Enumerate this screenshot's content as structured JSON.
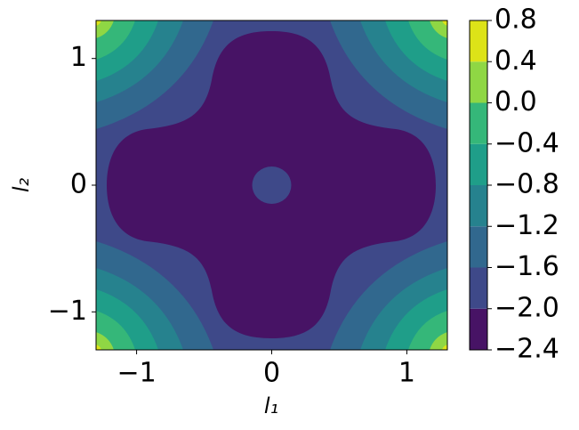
{
  "chart_data": {
    "type": "contourf",
    "xlabel": "l₁",
    "ylabel": "l₂",
    "xlim": [
      -1.3,
      1.3
    ],
    "ylim": [
      -1.3,
      1.3
    ],
    "xticks": [
      {
        "value": -1,
        "label": "−1"
      },
      0,
      1
    ],
    "yticks": [
      {
        "value": -1,
        "label": "−1"
      },
      0,
      1
    ],
    "clim": [
      -2.4,
      0.8
    ],
    "levels": [
      {
        "value": -2.4,
        "label": "−2.4"
      },
      {
        "value": -2.0,
        "label": "−2.0"
      },
      {
        "value": -1.6,
        "label": "−1.6"
      },
      {
        "value": -1.2,
        "label": "−1.2"
      },
      {
        "value": -0.8,
        "label": "−0.8"
      },
      {
        "value": -0.4,
        "label": "−0.4"
      },
      {
        "value": 0,
        "label": "0.0"
      },
      0.4,
      0.8
    ],
    "colors": [
      "#471365",
      "#3e4989",
      "#31688e",
      "#26828e",
      "#1f9e89",
      "#35b779",
      "#8fd744",
      "#dde318"
    ]
  }
}
